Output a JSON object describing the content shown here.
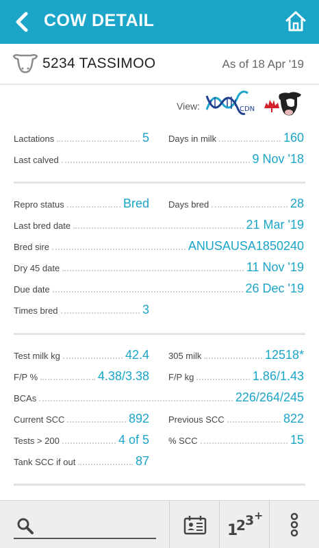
{
  "header": {
    "title": "COW DETAIL",
    "back_icon": "chevron-left-icon",
    "home_icon": "home-icon",
    "color": "#1aa5c9"
  },
  "cow": {
    "name": "5234 TASSIMOO",
    "as_of": "As of 18 Apr '19",
    "icon": "cow-head-icon"
  },
  "view": {
    "label": "View:",
    "logos": [
      "dna-cdn-logo",
      "holstein-canada-logo"
    ],
    "dna_caption": "CDN"
  },
  "section1": {
    "lactations_label": "Lactations",
    "lactations_value": "5",
    "dim_label": "Days in milk",
    "dim_value": "160",
    "last_calved_label": "Last calved",
    "last_calved_value": "9 Nov '18"
  },
  "section2": {
    "repro_label": "Repro status",
    "repro_value": "Bred",
    "days_bred_label": "Days bred",
    "days_bred_value": "28",
    "last_bred_label": "Last bred date",
    "last_bred_value": "21 Mar '19",
    "sire_label": "Bred sire",
    "sire_value": "ANUSAUSA1850240",
    "dry_label": "Dry 45 date",
    "dry_value": "11 Nov '19",
    "due_label": "Due date",
    "due_value": "26 Dec '19",
    "times_bred_label": "Times bred",
    "times_bred_value": "3"
  },
  "section3": {
    "test_milk_label": "Test milk kg",
    "test_milk_value": "42.4",
    "milk305_label": "305 milk",
    "milk305_value": "12518*",
    "fp_pct_label": "F/P %",
    "fp_pct_value": "4.38/3.38",
    "fp_kg_label": "F/P kg",
    "fp_kg_value": "1.86/1.43",
    "bca_label": "BCAs",
    "bca_value": "226/264/245",
    "scc_label": "Current SCC",
    "scc_value": "892",
    "prev_scc_label": "Previous SCC",
    "prev_scc_value": "822",
    "tests_label": "Tests > 200",
    "tests_value": "4 of 5",
    "pct_scc_label": "% SCC",
    "pct_scc_value": "15",
    "tank_label": "Tank SCC if out",
    "tank_value": "87"
  },
  "bottom": {
    "search_icon": "search-icon",
    "card_icon": "id-card-icon",
    "numbers_icon": "numbers-123-icon",
    "numbers_text": "123+",
    "more_icon": "more-vertical-icon"
  }
}
